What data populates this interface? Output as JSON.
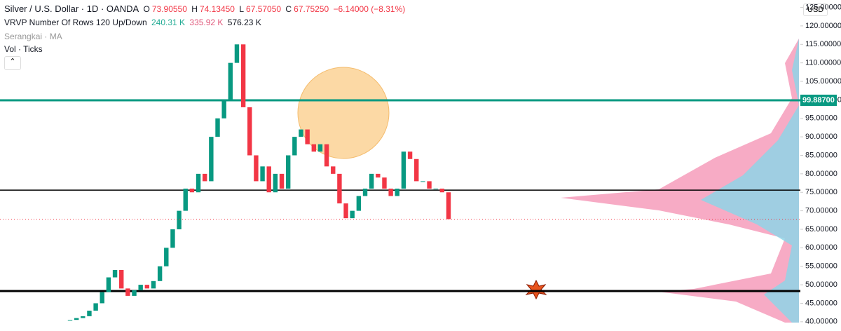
{
  "header": {
    "symbol": "Silver / U.S. Dollar · 1D · OANDA",
    "o_label": "O",
    "open": "73.90550",
    "h_label": "H",
    "high": "74.13450",
    "l_label": "L",
    "low": "67.57050",
    "c_label": "C",
    "close": "67.75250",
    "change": "−6.14000 (−8.31%)"
  },
  "indicators": {
    "vrvp": "VRVP Number Of Rows 120 Up/Down",
    "up": "240.31 K",
    "down": "335.92 K",
    "total": "576.23 K",
    "ma": "Serangkai · MA",
    "vol": "Vol · Ticks"
  },
  "currency": "USD",
  "chart_data": {
    "type": "candlestick",
    "closes": [
      40.5,
      41,
      41.5,
      43,
      45,
      48,
      52,
      54,
      49,
      47,
      48.5,
      50,
      49,
      51,
      55,
      60,
      65,
      70,
      76,
      75,
      80,
      78,
      90,
      95,
      100,
      110,
      115,
      98,
      85,
      78,
      82,
      75,
      80,
      76,
      85,
      90,
      92,
      88,
      86,
      88,
      82,
      80,
      72,
      68,
      70,
      74,
      76,
      80,
      79,
      76,
      74,
      76,
      86,
      84,
      78,
      78,
      76,
      76,
      75,
      67.75
    ],
    "ylim": [
      37.5,
      127
    ],
    "yticks": [
      {
        "value": 40,
        "label": "40.00000"
      },
      {
        "value": 45,
        "label": "45.00000"
      },
      {
        "value": 50,
        "label": "50.00000"
      },
      {
        "value": 55,
        "label": "55.00000"
      },
      {
        "value": 60,
        "label": "60.00000"
      },
      {
        "value": 65,
        "label": "65.00000"
      },
      {
        "value": 70,
        "label": "70.00000"
      },
      {
        "value": 75,
        "label": "75.00000"
      },
      {
        "value": 80,
        "label": "80.00000"
      },
      {
        "value": 85,
        "label": "85.00000"
      },
      {
        "value": 90,
        "label": "90.00000"
      },
      {
        "value": 95,
        "label": "95.00000"
      },
      {
        "value": 100,
        "label": "100.00000"
      },
      {
        "value": 105,
        "label": "105.00000"
      },
      {
        "value": 110,
        "label": "110.00000"
      },
      {
        "value": 115,
        "label": "115.00000"
      },
      {
        "value": 120,
        "label": "120.00000"
      },
      {
        "value": 125,
        "label": "125.00000"
      }
    ],
    "levels": [
      {
        "value": 99.887,
        "label": "99.88700",
        "color": "#089981"
      },
      {
        "value": 75.6,
        "color": "#000000"
      },
      {
        "value": 48.3,
        "color": "#000000"
      }
    ],
    "up_color": "#089981",
    "down_color": "#f23645"
  }
}
